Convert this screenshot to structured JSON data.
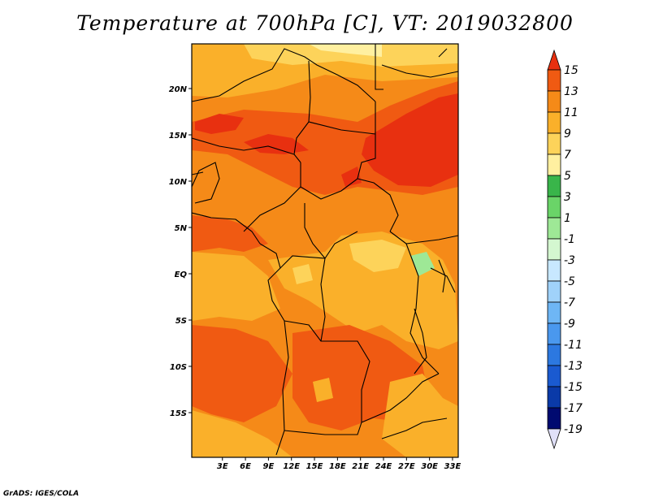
{
  "title": "Temperature at 700hPa [C], VT: 2019032800",
  "credit": "GrADS: IGES/COLA",
  "map": {
    "lon_ticks": [
      "3E",
      "6E",
      "9E",
      "12E",
      "15E",
      "18E",
      "21E",
      "24E",
      "27E",
      "30E",
      "33E"
    ],
    "lat_ticks": [
      "20N",
      "15N",
      "10N",
      "5N",
      "EQ",
      "5S",
      "10S",
      "15S"
    ],
    "lon_tick_values": [
      3,
      6,
      9,
      12,
      15,
      18,
      21,
      24,
      27,
      30,
      33
    ],
    "lat_tick_values": [
      20,
      15,
      10,
      5,
      0,
      -5,
      -10,
      -15
    ]
  },
  "colorbar": {
    "labels": [
      "15",
      "13",
      "11",
      "9",
      "7",
      "5",
      "3",
      "1",
      "-1",
      "-3",
      "-5",
      "-7",
      "-9",
      "-11",
      "-13",
      "-15",
      "-17",
      "-19"
    ],
    "colors": [
      "#e83010",
      "#f05a12",
      "#f58a18",
      "#fab02a",
      "#fdd35a",
      "#fff0a0",
      "#39b54a",
      "#6ad468",
      "#9ee896",
      "#d4f7d0",
      "#c8e8ff",
      "#a0d2fa",
      "#6eb6f5",
      "#4a98ee",
      "#2c78e0",
      "#1a5ad0",
      "#0a3aa8",
      "#000a70",
      "#e0e0f8"
    ]
  }
}
